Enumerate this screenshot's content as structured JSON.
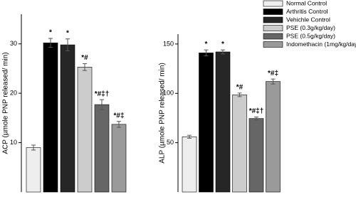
{
  "legend": [
    {
      "name": "Normal Control",
      "color": "#eeeeee"
    },
    {
      "name": "Arthritis Control",
      "color": "#000000"
    },
    {
      "name": "Vehichle Control",
      "color": "#262626"
    },
    {
      "name": "PSE (0.3g/kg/day)",
      "color": "#cccccc"
    },
    {
      "name": "PSE (0.5g/kg/day)",
      "color": "#666666"
    },
    {
      "name": "Indomethacin (1mg/kg/day)",
      "color": "#9a9a9a"
    }
  ],
  "chart_data": [
    {
      "type": "bar",
      "y_label": "ACP (µmole PNP released/ min)",
      "values": [
        9.0,
        30.2,
        29.8,
        25.3,
        17.7,
        13.7
      ],
      "errors": [
        0.5,
        0.9,
        1.2,
        0.7,
        1.0,
        0.6
      ],
      "annotations": [
        null,
        "*",
        "*",
        "*#",
        "*#‡†",
        "*#‡"
      ],
      "ylim": [
        0,
        36
      ],
      "yticks": [
        10,
        20,
        30
      ]
    },
    {
      "type": "bar",
      "y_label": "ALP (µmole PNP released/ min)",
      "values": [
        56,
        141,
        142,
        98.5,
        74.5,
        112
      ],
      "errors": [
        1.5,
        3,
        2,
        1.8,
        1.5,
        2.5
      ],
      "annotations": [
        null,
        "*",
        "*",
        "*#",
        "*#‡†",
        "*#‡"
      ],
      "ylim": [
        0,
        160
      ],
      "yticks": [
        50,
        100,
        150
      ]
    }
  ]
}
